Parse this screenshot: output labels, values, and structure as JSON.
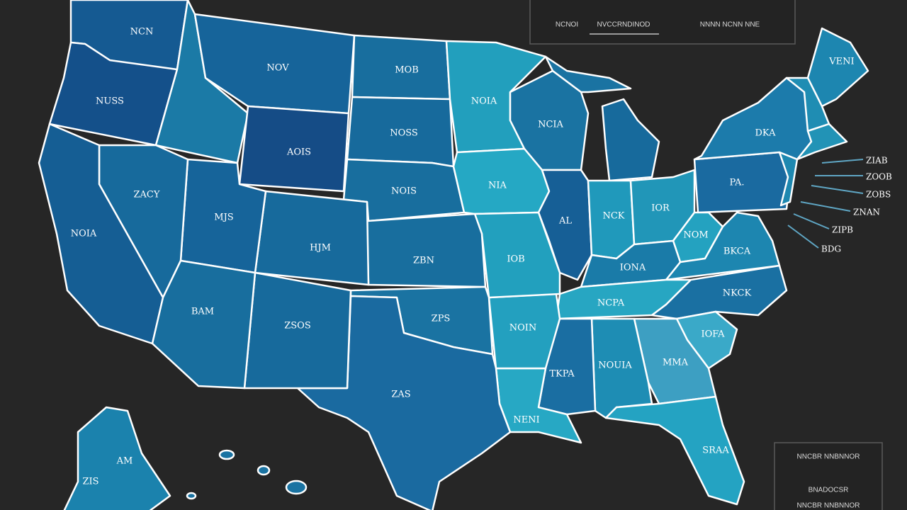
{
  "legend": {
    "items": [
      "NCNOI",
      "NVCCRNDINOD",
      "NNNN NCNN NNE"
    ]
  },
  "state_labels": [
    "NCN",
    "NUSS",
    "NOV",
    "MOB",
    "NOSS",
    "AOIS",
    "NOIS",
    "NOIA",
    "NCIA",
    "NIA",
    "AL",
    "NCK",
    "IOR",
    "PA.",
    "DKA",
    "VENI",
    "NOM",
    "BKCA",
    "IONA",
    "NCPA",
    "NKCK",
    "IOFA",
    "MMA",
    "NOUIA",
    "TKPA",
    "NENI",
    "NOIN",
    "IOB",
    "ZBN",
    "ZPS",
    "ZAS",
    "ZSOS",
    "HJM",
    "MJS",
    "ZACY",
    "NOIA",
    "BAM",
    "SRAA",
    "AM",
    "ZIS"
  ],
  "callouts": [
    "ZIAB",
    "ZOOB",
    "ZOBS",
    "ZNAN",
    "ZIPB",
    "BDG"
  ],
  "inset": {
    "lines": [
      "NNCBR NNBNNOR",
      "BNADOCSR",
      "NNCBR NNBNNOR"
    ]
  }
}
